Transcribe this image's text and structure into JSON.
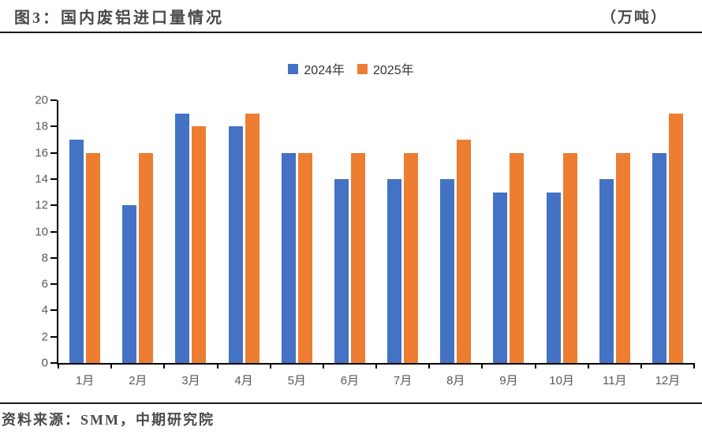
{
  "header": {
    "title": "图3：国内废铝进口量情况",
    "unit": "（万吨）"
  },
  "source": "资料来源：SMM，中期研究院",
  "colors": {
    "series_2024": "#4472C4",
    "series_2025": "#ED7D31",
    "axis": "#000000",
    "tick_label": "#595959",
    "title_text": "#4a4a4a"
  },
  "chart_data": {
    "type": "bar",
    "title": "图3：国内废铝进口量情况",
    "unit_label": "（万吨）",
    "categories": [
      "1月",
      "2月",
      "3月",
      "4月",
      "5月",
      "6月",
      "7月",
      "8月",
      "9月",
      "10月",
      "11月",
      "12月"
    ],
    "series": [
      {
        "name": "2024年",
        "color": "#4472C4",
        "values": [
          17,
          12,
          19,
          18,
          16,
          14,
          14,
          14,
          13,
          13,
          14,
          16
        ]
      },
      {
        "name": "2025年",
        "color": "#ED7D31",
        "values": [
          16,
          16,
          18,
          19,
          16,
          16,
          16,
          17,
          16,
          16,
          16,
          19
        ]
      }
    ],
    "ylim": [
      0,
      20
    ],
    "ytick_step": 2,
    "xlabel": "",
    "ylabel": "",
    "grid": false,
    "legend_position": "top"
  }
}
